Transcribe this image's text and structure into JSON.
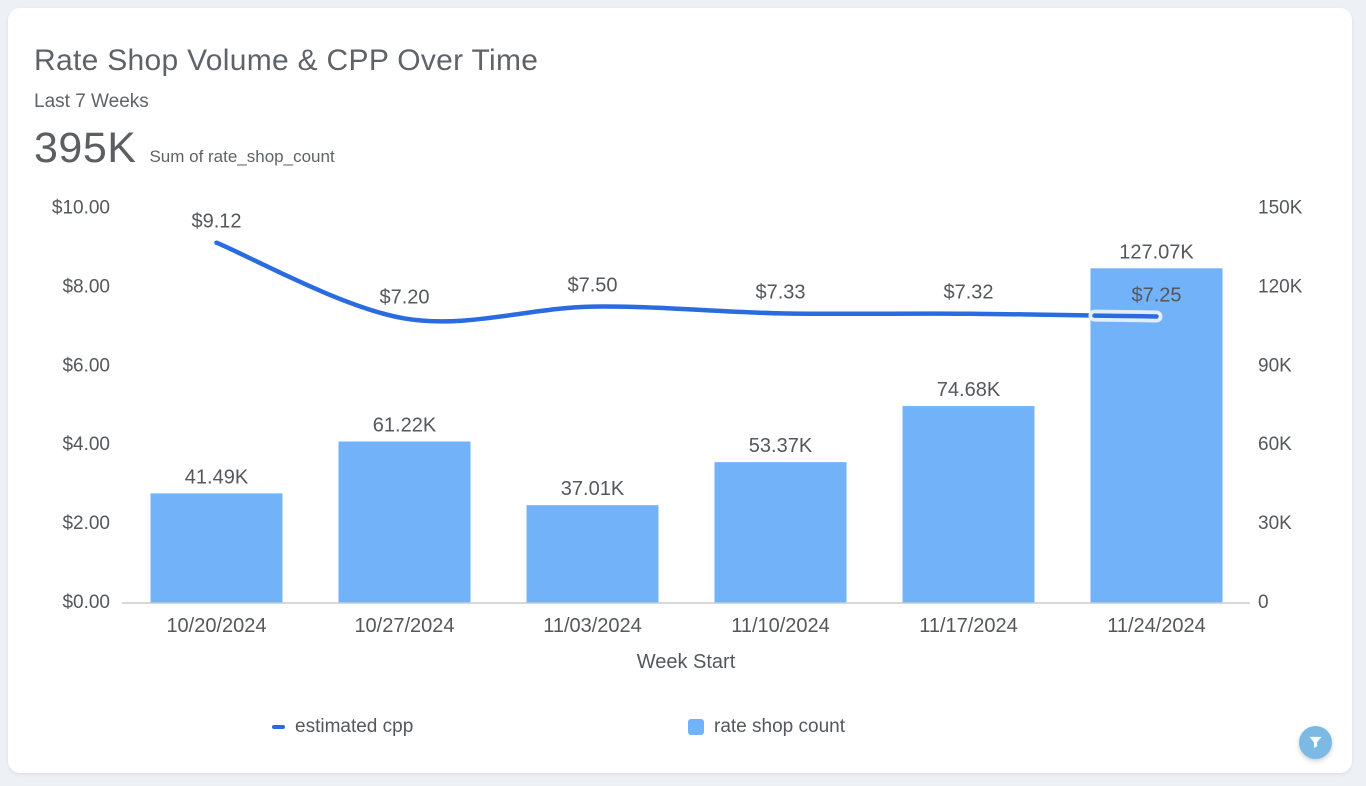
{
  "card": {
    "title": "Rate Shop Volume & CPP Over Time",
    "subtitle": "Last 7 Weeks",
    "kpi_value": "395K",
    "kpi_label": "Sum of rate_shop_count"
  },
  "chart_data": {
    "type": "combo",
    "categories": [
      "10/20/2024",
      "10/27/2024",
      "11/03/2024",
      "11/10/2024",
      "11/17/2024",
      "11/24/2024"
    ],
    "series": [
      {
        "name": "estimated cpp",
        "type": "line",
        "axis": "left",
        "values": [
          9.12,
          7.2,
          7.5,
          7.33,
          7.32,
          7.25
        ],
        "labels": [
          "$9.12",
          "$7.20",
          "$7.50",
          "$7.33",
          "$7.32",
          "$7.25"
        ],
        "color": "#2b6be0"
      },
      {
        "name": "rate shop count",
        "type": "bar",
        "axis": "right",
        "values": [
          41490,
          61220,
          37010,
          53370,
          74680,
          127070
        ],
        "labels": [
          "41.49K",
          "61.22K",
          "37.01K",
          "53.37K",
          "74.68K",
          "127.07K"
        ],
        "color": "#72b2f9"
      }
    ],
    "left_axis": {
      "min": 0,
      "max": 10,
      "ticks": [
        "$10.00",
        "$8.00",
        "$6.00",
        "$4.00",
        "$2.00",
        "$0.00"
      ]
    },
    "right_axis": {
      "min": 0,
      "max": 150000,
      "ticks": [
        "150K",
        "120K",
        "90K",
        "60K",
        "30K",
        "0"
      ]
    },
    "xlabel": "Week Start",
    "grid": false,
    "legend_position": "bottom",
    "legend": [
      {
        "label": "estimated cpp",
        "marker": "line"
      },
      {
        "label": "rate shop count",
        "marker": "square"
      }
    ]
  },
  "colors": {
    "bar": "#72b2f9",
    "line": "#2b6be0",
    "line_end_halo": "#e4edfa",
    "axis_line": "#d8d8d8",
    "text": "#54575c",
    "filter_button": "#7db9e5"
  },
  "footer": {
    "filter_button_icon": "funnel-icon"
  }
}
